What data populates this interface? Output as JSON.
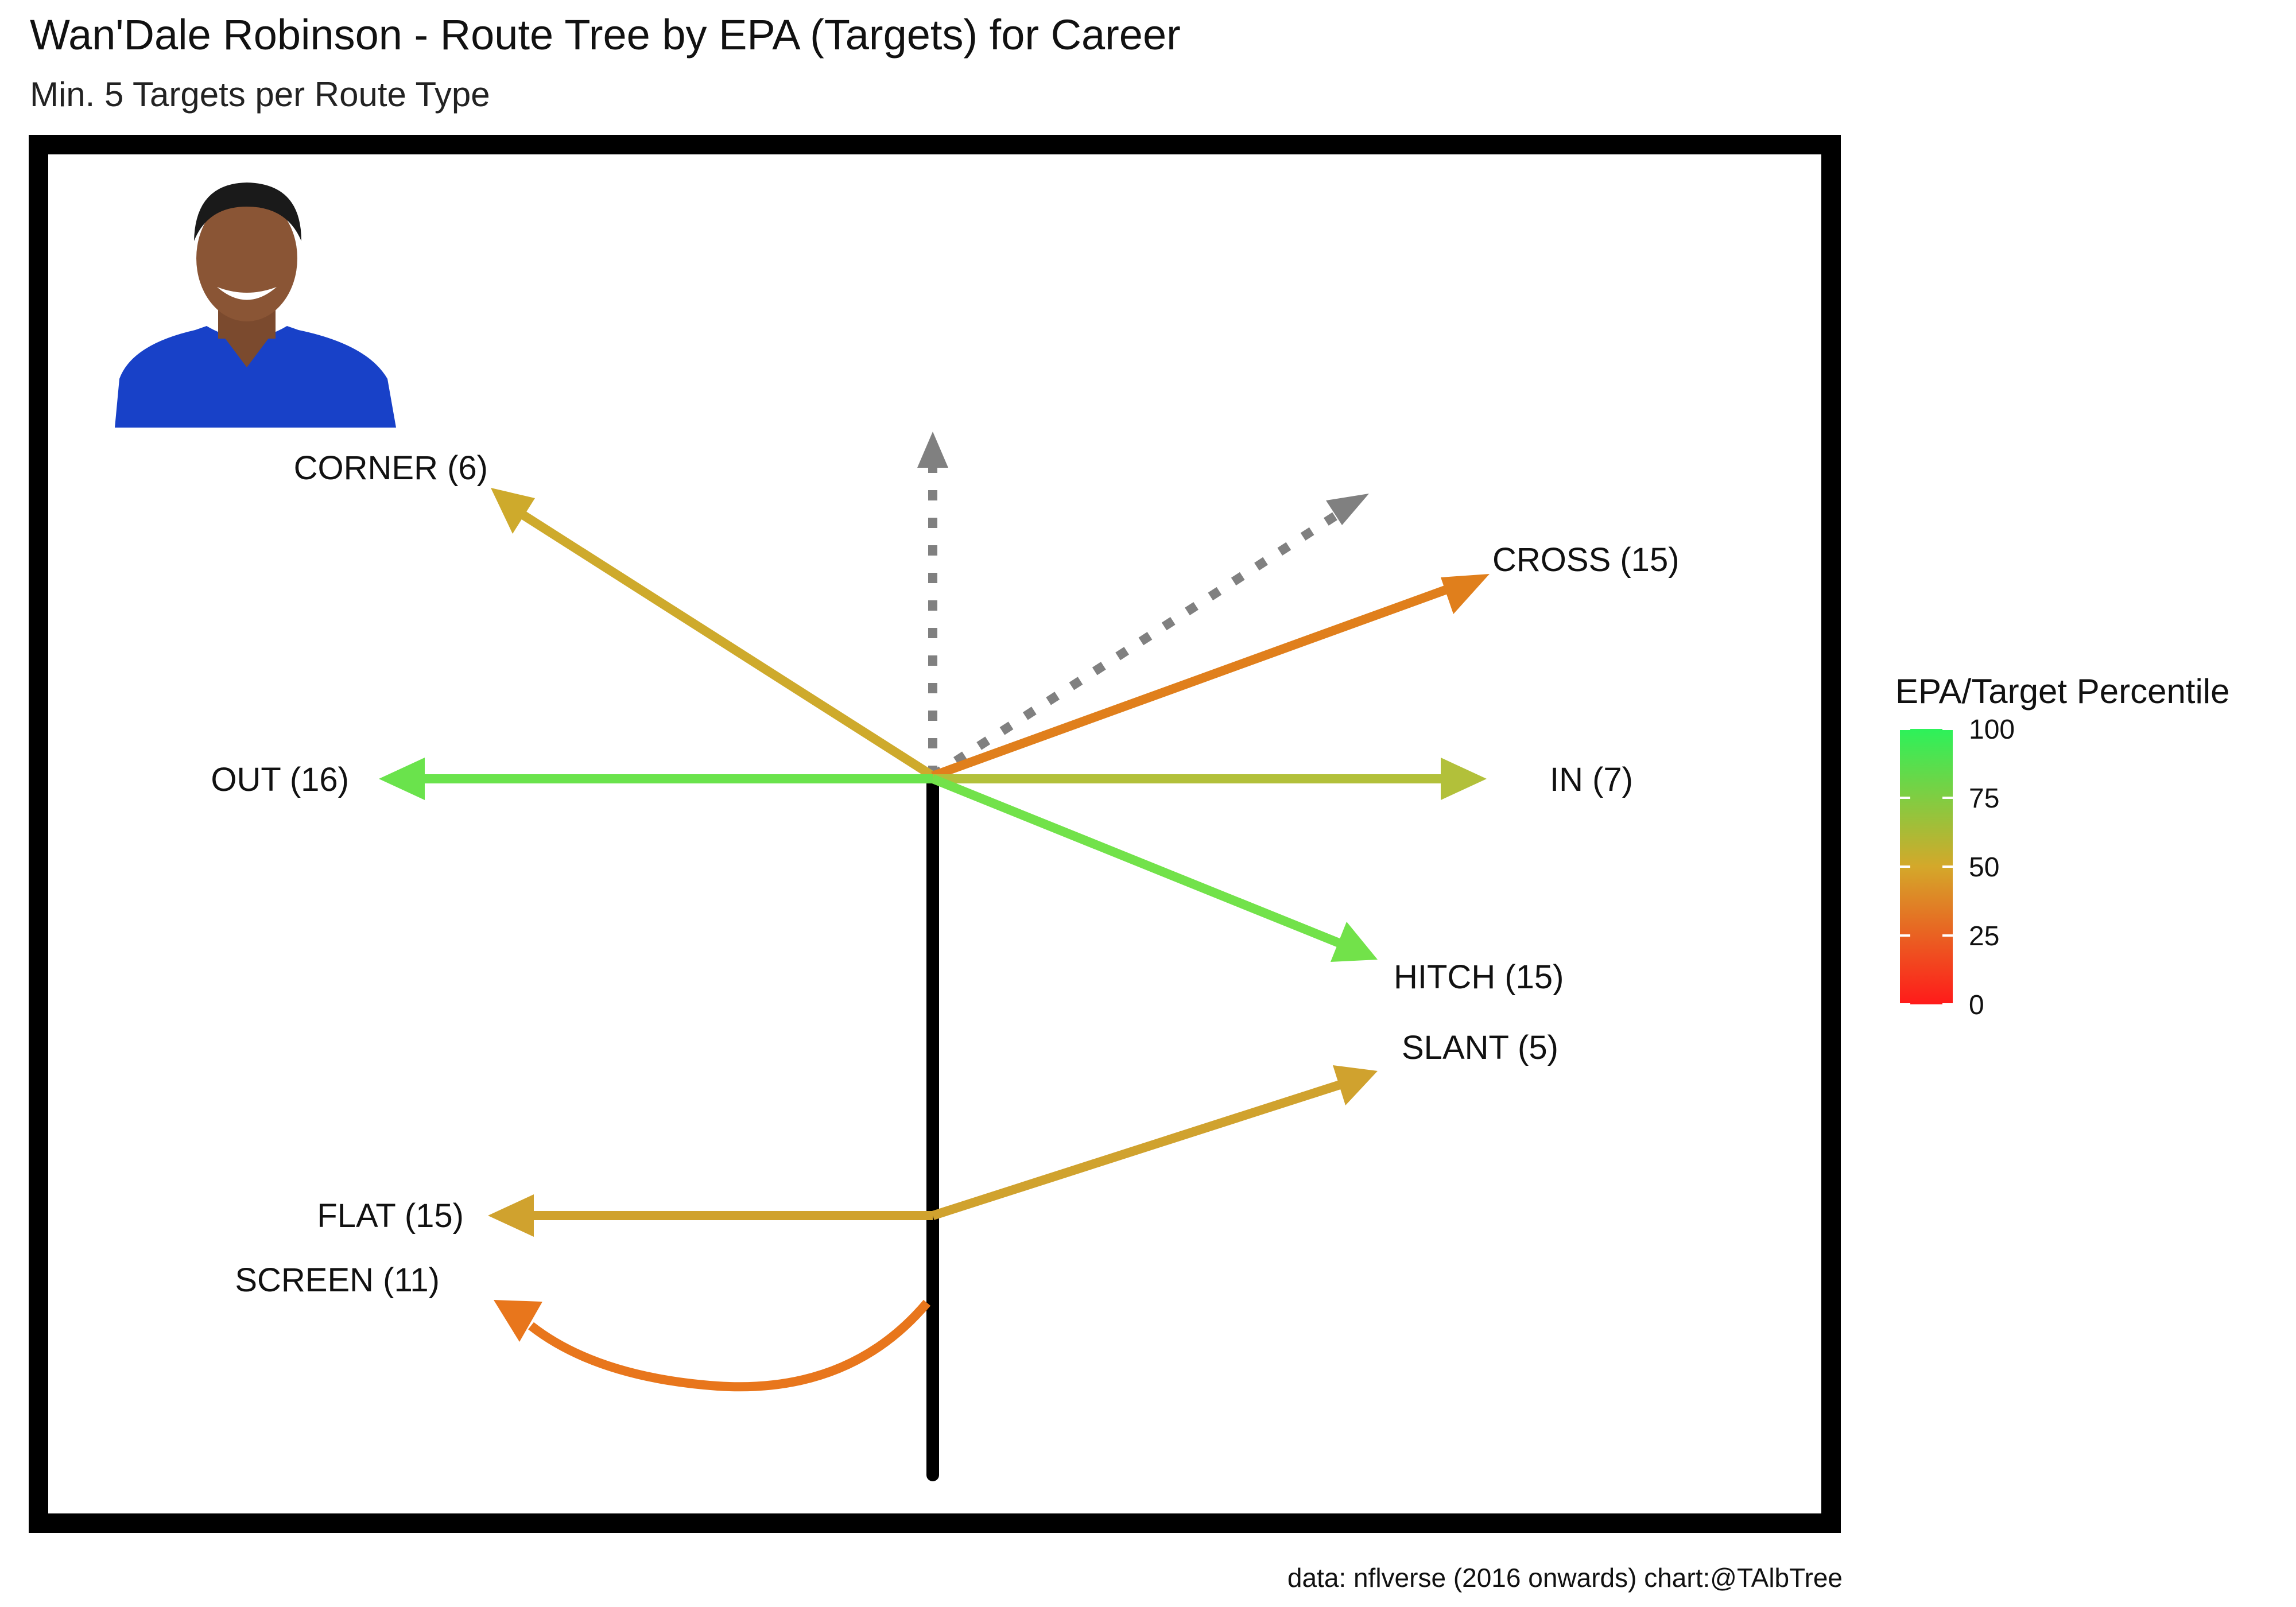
{
  "chart_data": {
    "type": "route-tree",
    "title": "Wan'Dale Robinson - Route Tree by EPA (Targets) for Career",
    "subtitle": "Min. 5 Targets per Route Type",
    "caption": "data: nflverse (2016 onwards)  chart:@TAlbTree",
    "legend": {
      "title": "EPA/Target Percentile",
      "ticks": [
        0,
        25,
        50,
        75,
        100
      ],
      "placement": "right",
      "low_color": "#ff1a1a",
      "mid_color": "#d4a82a",
      "high_color": "#2cf25a"
    },
    "routes": [
      {
        "route": "CORNER",
        "targets": 6,
        "percentile": 45,
        "color": "#ceaa2c",
        "label": "CORNER (6)"
      },
      {
        "route": "CROSS",
        "targets": 15,
        "percentile": 30,
        "color": "#e07f1c",
        "label": "CROSS (15)"
      },
      {
        "route": "OUT",
        "targets": 16,
        "percentile": 95,
        "color": "#6ae34c",
        "label": "OUT (16)"
      },
      {
        "route": "IN",
        "targets": 7,
        "percentile": 65,
        "color": "#b2c03a",
        "label": "IN (7)"
      },
      {
        "route": "HITCH",
        "targets": 15,
        "percentile": 90,
        "color": "#72e24a",
        "label": "HITCH (15)"
      },
      {
        "route": "SLANT",
        "targets": 5,
        "percentile": 45,
        "color": "#d0a22e",
        "label": "SLANT (5)"
      },
      {
        "route": "FLAT",
        "targets": 15,
        "percentile": 45,
        "color": "#d0a22e",
        "label": "FLAT (15)"
      },
      {
        "route": "SCREEN",
        "targets": 11,
        "percentile": 25,
        "color": "#e8761c",
        "label": "SCREEN (11)"
      }
    ],
    "unqualified_routes": [
      {
        "route": "GO",
        "color": "#808080",
        "style": "dotted"
      },
      {
        "route": "POST",
        "color": "#808080",
        "style": "dotted"
      }
    ]
  },
  "player_photo": {
    "jersey_color": "#1841c8"
  }
}
